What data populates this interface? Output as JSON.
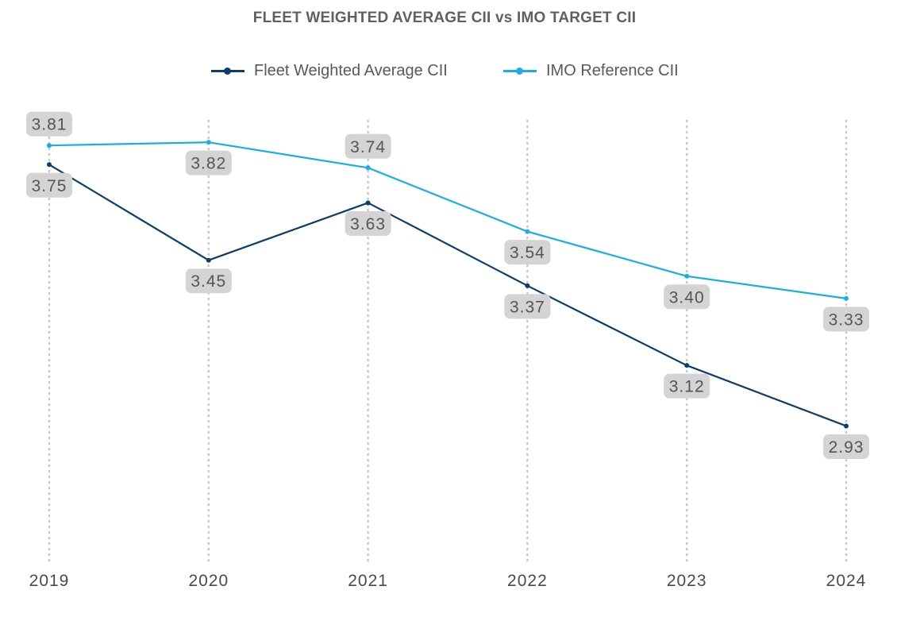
{
  "chart_data": {
    "type": "line",
    "title": "FLEET WEIGHTED AVERAGE CII vs IMO TARGET CII",
    "xlabel": "",
    "ylabel": "",
    "x": [
      "2019",
      "2020",
      "2021",
      "2022",
      "2023",
      "2024"
    ],
    "ylim": [
      2.55,
      3.95
    ],
    "grid": "vertical dotted",
    "legend_position": "top-center",
    "series": [
      {
        "name": "Fleet Weighted Average CII",
        "color": "#0b3d6e",
        "values": [
          3.75,
          3.45,
          3.63,
          3.37,
          3.12,
          2.93
        ],
        "labels": [
          "3.75",
          "3.45",
          "3.63",
          "3.37",
          "3.12",
          "2.93"
        ],
        "label_position": "below"
      },
      {
        "name": "IMO Reference CII",
        "color": "#1aaee6",
        "values": [
          3.81,
          3.82,
          3.74,
          3.54,
          3.4,
          3.33
        ],
        "labels": [
          "3.81",
          "3.82",
          "3.74",
          "3.54",
          "3.40",
          "3.33"
        ],
        "label_position": [
          "above",
          "below",
          "above",
          "below",
          "below",
          "below"
        ]
      }
    ]
  }
}
